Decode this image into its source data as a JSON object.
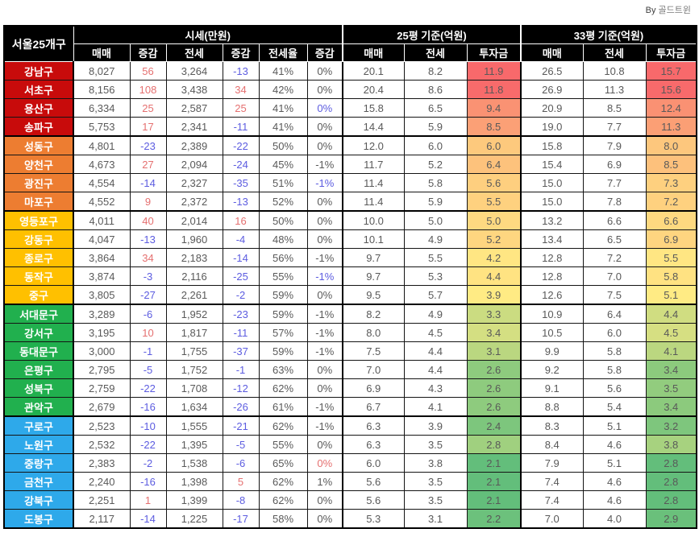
{
  "credit": {
    "prefix": "By",
    "name": "골드트윈"
  },
  "colors": {
    "header_bg": "#000000",
    "header_text": "#ffffff",
    "group_red": "#c80b0b",
    "group_orange": "#ed7d31",
    "group_gold": "#ffc000",
    "group_green": "#21b04e",
    "group_blue": "#2ea9ea",
    "text_body": "#595959",
    "change_up": "#e57070",
    "change_down": "#5c5ce0",
    "change_flat": "#595959",
    "scale_min": "#63be7b",
    "scale_mid": "#ffeb84",
    "scale_max": "#f8696b"
  },
  "chart_data": {
    "type": "table",
    "corner_label": "서울25개구",
    "column_groups": [
      {
        "label": "시세(만원)",
        "span": 6
      },
      {
        "label": "25평 기준(억원)",
        "span": 3
      },
      {
        "label": "33평 기준(억원)",
        "span": 3
      }
    ],
    "columns": [
      "매매",
      "증감",
      "전세",
      "증감",
      "전세율",
      "증감",
      "매매",
      "전세",
      "투자금",
      "매매",
      "전세",
      "투자금"
    ],
    "rows": [
      {
        "name": "강남구",
        "group": "red",
        "d3": "flat",
        "cells": [
          "8,027",
          "56",
          "3,264",
          "-13",
          "41%",
          "0%",
          "20.1",
          "8.2",
          "11.9",
          "26.5",
          "10.8",
          "15.7"
        ]
      },
      {
        "name": "서초구",
        "group": "red",
        "d3": "flat",
        "cells": [
          "8,156",
          "108",
          "3,438",
          "34",
          "42%",
          "0%",
          "20.4",
          "8.6",
          "11.8",
          "26.9",
          "11.3",
          "15.6"
        ]
      },
      {
        "name": "용산구",
        "group": "red",
        "d3": "down",
        "cells": [
          "6,334",
          "25",
          "2,587",
          "25",
          "41%",
          "0%",
          "15.8",
          "6.5",
          "9.4",
          "20.9",
          "8.5",
          "12.4"
        ]
      },
      {
        "name": "송파구",
        "group": "red",
        "d3": "flat",
        "cells": [
          "5,753",
          "17",
          "2,341",
          "-11",
          "41%",
          "0%",
          "14.4",
          "5.9",
          "8.5",
          "19.0",
          "7.7",
          "11.3"
        ]
      },
      {
        "name": "성동구",
        "group": "orange",
        "d3": "flat",
        "cells": [
          "4,801",
          "-23",
          "2,389",
          "-22",
          "50%",
          "0%",
          "12.0",
          "6.0",
          "6.0",
          "15.8",
          "7.9",
          "8.0"
        ]
      },
      {
        "name": "양천구",
        "group": "orange",
        "d3": "flat",
        "cells": [
          "4,673",
          "27",
          "2,094",
          "-24",
          "45%",
          "-1%",
          "11.7",
          "5.2",
          "6.4",
          "15.4",
          "6.9",
          "8.5"
        ]
      },
      {
        "name": "광진구",
        "group": "orange",
        "d3": "down",
        "cells": [
          "4,554",
          "-14",
          "2,327",
          "-35",
          "51%",
          "-1%",
          "11.4",
          "5.8",
          "5.6",
          "15.0",
          "7.7",
          "7.3"
        ]
      },
      {
        "name": "마포구",
        "group": "orange",
        "d3": "flat",
        "cells": [
          "4,552",
          "9",
          "2,372",
          "-13",
          "52%",
          "0%",
          "11.4",
          "5.9",
          "5.5",
          "15.0",
          "7.8",
          "7.2"
        ]
      },
      {
        "name": "영등포구",
        "group": "gold",
        "d3": "flat",
        "cells": [
          "4,011",
          "40",
          "2,014",
          "16",
          "50%",
          "0%",
          "10.0",
          "5.0",
          "5.0",
          "13.2",
          "6.6",
          "6.6"
        ]
      },
      {
        "name": "강동구",
        "group": "gold",
        "d3": "flat",
        "cells": [
          "4,047",
          "-13",
          "1,960",
          "-4",
          "48%",
          "0%",
          "10.1",
          "4.9",
          "5.2",
          "13.4",
          "6.5",
          "6.9"
        ]
      },
      {
        "name": "종로구",
        "group": "gold",
        "d3": "flat",
        "cells": [
          "3,864",
          "34",
          "2,183",
          "-14",
          "56%",
          "-1%",
          "9.7",
          "5.5",
          "4.2",
          "12.8",
          "7.2",
          "5.5"
        ]
      },
      {
        "name": "동작구",
        "group": "gold",
        "d3": "down",
        "cells": [
          "3,874",
          "-3",
          "2,116",
          "-25",
          "55%",
          "-1%",
          "9.7",
          "5.3",
          "4.4",
          "12.8",
          "7.0",
          "5.8"
        ]
      },
      {
        "name": "중구",
        "group": "gold",
        "d3": "flat",
        "cells": [
          "3,805",
          "-27",
          "2,261",
          "-2",
          "59%",
          "0%",
          "9.5",
          "5.7",
          "3.9",
          "12.6",
          "7.5",
          "5.1"
        ]
      },
      {
        "name": "서대문구",
        "group": "green",
        "d3": "flat",
        "cells": [
          "3,289",
          "-6",
          "1,952",
          "-23",
          "59%",
          "-1%",
          "8.2",
          "4.9",
          "3.3",
          "10.9",
          "6.4",
          "4.4"
        ]
      },
      {
        "name": "강서구",
        "group": "green",
        "d3": "flat",
        "cells": [
          "3,195",
          "10",
          "1,817",
          "-11",
          "57%",
          "-1%",
          "8.0",
          "4.5",
          "3.4",
          "10.5",
          "6.0",
          "4.5"
        ]
      },
      {
        "name": "동대문구",
        "group": "green",
        "d3": "flat",
        "cells": [
          "3,000",
          "-1",
          "1,755",
          "-37",
          "59%",
          "-1%",
          "7.5",
          "4.4",
          "3.1",
          "9.9",
          "5.8",
          "4.1"
        ]
      },
      {
        "name": "은평구",
        "group": "green",
        "d3": "flat",
        "cells": [
          "2,795",
          "-5",
          "1,752",
          "-1",
          "63%",
          "0%",
          "7.0",
          "4.4",
          "2.6",
          "9.2",
          "5.8",
          "3.4"
        ]
      },
      {
        "name": "성북구",
        "group": "green",
        "d3": "flat",
        "cells": [
          "2,759",
          "-22",
          "1,708",
          "-12",
          "62%",
          "0%",
          "6.9",
          "4.3",
          "2.6",
          "9.1",
          "5.6",
          "3.5"
        ]
      },
      {
        "name": "관악구",
        "group": "green",
        "d3": "flat",
        "cells": [
          "2,679",
          "-16",
          "1,634",
          "-26",
          "61%",
          "-1%",
          "6.7",
          "4.1",
          "2.6",
          "8.8",
          "5.4",
          "3.4"
        ]
      },
      {
        "name": "구로구",
        "group": "blue",
        "d3": "flat",
        "cells": [
          "2,523",
          "-10",
          "1,555",
          "-21",
          "62%",
          "-1%",
          "6.3",
          "3.9",
          "2.4",
          "8.3",
          "5.1",
          "3.2"
        ]
      },
      {
        "name": "노원구",
        "group": "blue",
        "d3": "flat",
        "cells": [
          "2,532",
          "-22",
          "1,395",
          "-5",
          "55%",
          "0%",
          "6.3",
          "3.5",
          "2.8",
          "8.4",
          "4.6",
          "3.8"
        ]
      },
      {
        "name": "중랑구",
        "group": "blue",
        "d3": "up",
        "cells": [
          "2,383",
          "-2",
          "1,538",
          "-6",
          "65%",
          "0%",
          "6.0",
          "3.8",
          "2.1",
          "7.9",
          "5.1",
          "2.8"
        ]
      },
      {
        "name": "금천구",
        "group": "blue",
        "d3": "flat",
        "cells": [
          "2,240",
          "-16",
          "1,398",
          "5",
          "62%",
          "1%",
          "5.6",
          "3.5",
          "2.1",
          "7.4",
          "4.6",
          "2.8"
        ]
      },
      {
        "name": "강북구",
        "group": "blue",
        "d3": "flat",
        "cells": [
          "2,251",
          "1",
          "1,399",
          "-8",
          "62%",
          "0%",
          "5.6",
          "3.5",
          "2.1",
          "7.4",
          "4.6",
          "2.8"
        ]
      },
      {
        "name": "도봉구",
        "group": "blue",
        "d3": "flat",
        "cells": [
          "2,117",
          "-14",
          "1,225",
          "-17",
          "58%",
          "0%",
          "5.3",
          "3.1",
          "2.2",
          "7.0",
          "4.0",
          "2.9"
        ]
      }
    ]
  }
}
